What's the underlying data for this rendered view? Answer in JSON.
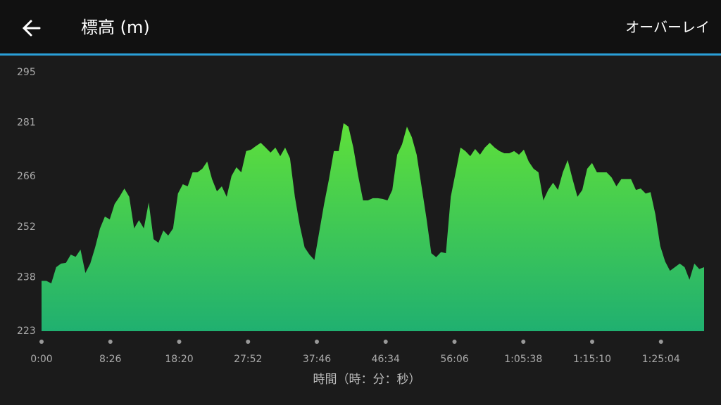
{
  "header": {
    "title": "標高 (m)",
    "action": "オーバーレイ"
  },
  "chart_data": {
    "type": "area",
    "ylim": [
      223,
      295
    ],
    "yticks": [
      223,
      238,
      252,
      266,
      281,
      295
    ],
    "xticks": [
      "0:00",
      "8:26",
      "18:20",
      "27:52",
      "37:46",
      "46:34",
      "56:06",
      "1:05:38",
      "1:15:10",
      "1:25:04"
    ],
    "xlabel": "時間（時：分：秒）",
    "values": [
      237,
      237,
      236.3,
      240.8,
      241.8,
      242,
      244.3,
      243.7,
      245.7,
      239.2,
      241.8,
      246.3,
      251.6,
      254.9,
      254.1,
      258.4,
      260.4,
      262.7,
      260.4,
      251.6,
      253.9,
      251.6,
      258.8,
      248.6,
      247.6,
      251,
      249.6,
      251.6,
      261.3,
      263.9,
      263.3,
      267.2,
      267.2,
      268.2,
      270.2,
      265.3,
      261.9,
      263.3,
      260.4,
      266.2,
      268.6,
      267.2,
      273.1,
      273.5,
      274.5,
      275.4,
      274.1,
      272.7,
      274.1,
      271.7,
      274.1,
      271.1,
      260.4,
      252.5,
      246.3,
      244.3,
      242.8,
      250.6,
      258.4,
      265.3,
      273.1,
      273.1,
      280.9,
      279.9,
      274.1,
      266.2,
      259.4,
      259.4,
      260,
      260,
      259.8,
      259.4,
      262.3,
      272.1,
      275,
      279.9,
      277,
      272.1,
      263.3,
      254.5,
      244.7,
      243.6,
      245,
      244.7,
      260.4,
      267.2,
      274.1,
      273.1,
      271.7,
      273.7,
      272.1,
      274.1,
      275.4,
      274.1,
      273.1,
      272.5,
      272.5,
      273.1,
      272.1,
      273.5,
      270.2,
      268.2,
      267.2,
      259.4,
      262.3,
      264.3,
      262.3,
      267.2,
      270.6,
      265.3,
      260.4,
      262.3,
      268.2,
      269.8,
      267.2,
      267.2,
      267.2,
      265.8,
      263.3,
      265.3,
      265.3,
      265.3,
      262.3,
      262.7,
      261.3,
      261.7,
      255.5,
      246.7,
      242.4,
      239.8,
      240.8,
      241.8,
      240.8,
      237.3,
      241.8,
      240.3,
      240.8
    ],
    "color_top": "#5fe03a",
    "color_bottom": "#20b070"
  }
}
